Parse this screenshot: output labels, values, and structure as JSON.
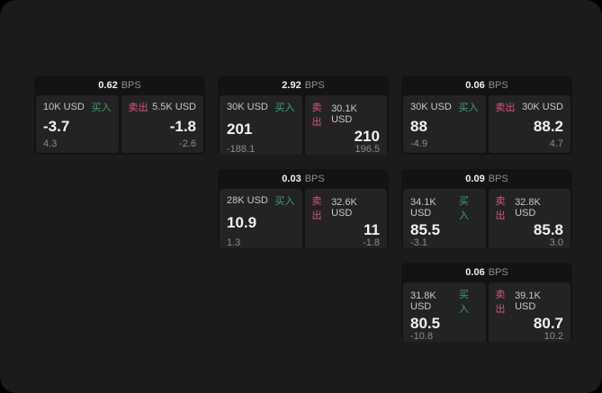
{
  "labels": {
    "buy": "买入",
    "sell": "卖出",
    "bps_unit": "BPS"
  },
  "colors": {
    "buy_accent": "#3da268",
    "sell_accent": "#d15a73",
    "surface": "#1b1b1d",
    "card_background": "#131315",
    "panel_background": "#232326",
    "value_text": "#f2f2f2",
    "label_text": "#c7c7c7",
    "sub_text": "#8b8b8b"
  },
  "cards": [
    {
      "bps": "0.62",
      "buy": {
        "amount": "10K USD",
        "price": "-3.7",
        "sub": "4.3"
      },
      "sell": {
        "amount": "5.5K USD",
        "price": "-1.8",
        "sub": "-2.6"
      }
    },
    {
      "bps": "2.92",
      "buy": {
        "amount": "30K USD",
        "price": "201",
        "sub": "-188.1"
      },
      "sell": {
        "amount": "30.1K USD",
        "price": "210",
        "sub": "196.5"
      }
    },
    {
      "bps": "0.06",
      "buy": {
        "amount": "30K USD",
        "price": "88",
        "sub": "-4.9"
      },
      "sell": {
        "amount": "30K USD",
        "price": "88.2",
        "sub": "4.7"
      }
    },
    {
      "bps": "0.03",
      "buy": {
        "amount": "28K USD",
        "price": "10.9",
        "sub": "1.3"
      },
      "sell": {
        "amount": "32.6K USD",
        "price": "11",
        "sub": "-1.8"
      }
    },
    {
      "bps": "0.09",
      "buy": {
        "amount": "34.1K USD",
        "price": "85.5",
        "sub": "-3.1"
      },
      "sell": {
        "amount": "32.8K USD",
        "price": "85.8",
        "sub": "3.0"
      }
    },
    {
      "bps": "0.06",
      "buy": {
        "amount": "31.8K USD",
        "price": "80.5",
        "sub": "-10.8"
      },
      "sell": {
        "amount": "39.1K USD",
        "price": "80.7",
        "sub": "10.2"
      }
    }
  ]
}
